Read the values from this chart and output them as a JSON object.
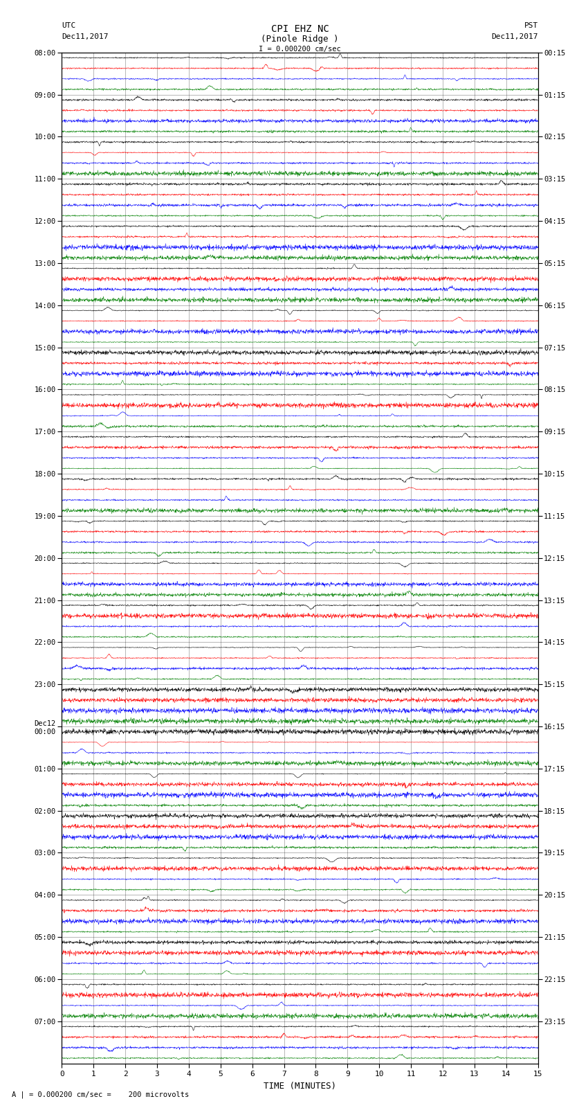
{
  "title_line1": "CPI EHZ NC",
  "title_line2": "(Pinole Ridge )",
  "scale_label": "I = 0.000200 cm/sec",
  "footer_label": "A | = 0.000200 cm/sec =    200 microvolts",
  "xlabel": "TIME (MINUTES)",
  "left_times": [
    "08:00",
    "09:00",
    "10:00",
    "11:00",
    "12:00",
    "13:00",
    "14:00",
    "15:00",
    "16:00",
    "17:00",
    "18:00",
    "19:00",
    "20:00",
    "21:00",
    "22:00",
    "23:00",
    "Dec12\n00:00",
    "01:00",
    "02:00",
    "03:00",
    "04:00",
    "05:00",
    "06:00",
    "07:00"
  ],
  "right_times": [
    "00:15",
    "01:15",
    "02:15",
    "03:15",
    "04:15",
    "05:15",
    "06:15",
    "07:15",
    "08:15",
    "09:15",
    "10:15",
    "11:15",
    "12:15",
    "13:15",
    "14:15",
    "15:15",
    "16:15",
    "17:15",
    "18:15",
    "19:15",
    "20:15",
    "21:15",
    "22:15",
    "23:15"
  ],
  "num_rows": 24,
  "traces_per_row": 4,
  "colors": [
    "black",
    "red",
    "blue",
    "green"
  ],
  "xticks": [
    0,
    1,
    2,
    3,
    4,
    5,
    6,
    7,
    8,
    9,
    10,
    11,
    12,
    13,
    14,
    15
  ],
  "background_color": "white",
  "fig_width": 8.5,
  "fig_height": 16.13
}
